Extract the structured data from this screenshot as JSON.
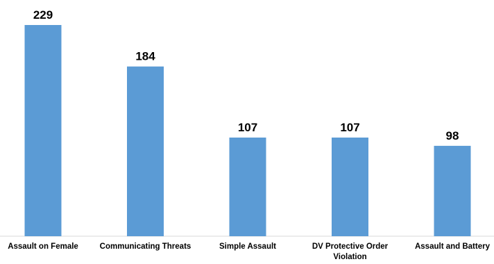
{
  "chart_data": {
    "type": "bar",
    "categories": [
      [
        "Assault on Female"
      ],
      [
        "Communicating Threats"
      ],
      [
        "Simple Assault"
      ],
      [
        "DV Protective Order",
        "Violation"
      ],
      [
        "Assault and Battery"
      ]
    ],
    "values": [
      229,
      184,
      107,
      107,
      98
    ],
    "title": "",
    "xlabel": "",
    "ylabel": "",
    "ylim": [
      0,
      229
    ],
    "grid": false,
    "legend": "none",
    "bar_color": "#5b9bd5"
  }
}
